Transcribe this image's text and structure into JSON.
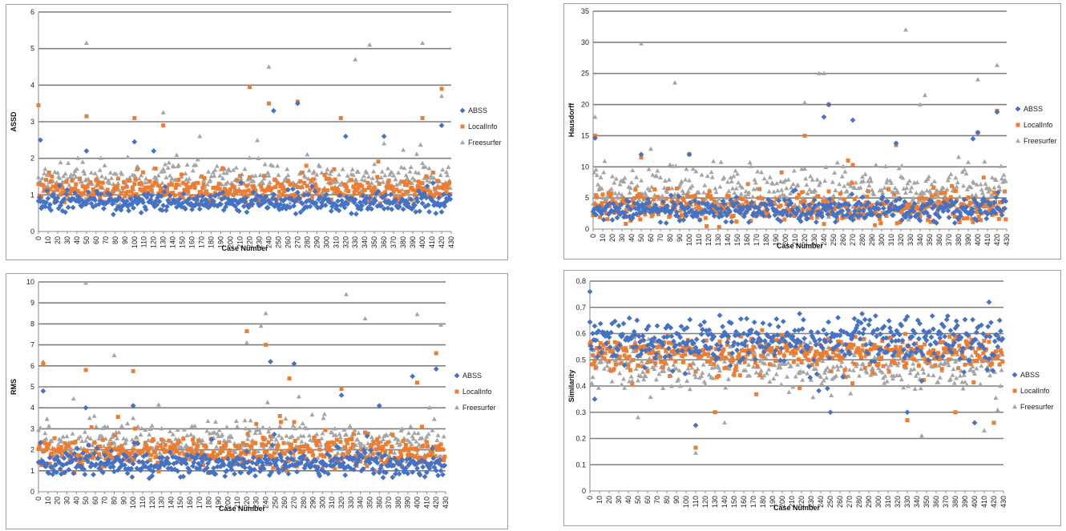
{
  "series_style": [
    {
      "name": "ABSS",
      "color": "#4472C4",
      "marker": "diamond"
    },
    {
      "name": "LocalInfo",
      "color": "#ED7D31",
      "marker": "square"
    },
    {
      "name": "Freesurfer",
      "color": "#A5A5A5",
      "marker": "triangle"
    }
  ],
  "chart_data": [
    {
      "type": "scatter",
      "xlabel": "Case Number",
      "ylabel": "ASSD",
      "xlim": [
        0,
        430
      ],
      "ylim": [
        0,
        6
      ],
      "yticks": [
        0,
        1,
        2,
        3,
        4,
        5,
        6
      ],
      "xticks": [
        0,
        10,
        20,
        30,
        40,
        50,
        60,
        70,
        80,
        90,
        100,
        110,
        120,
        130,
        140,
        150,
        160,
        170,
        180,
        190,
        200,
        210,
        220,
        230,
        240,
        250,
        260,
        270,
        280,
        290,
        300,
        310,
        320,
        330,
        340,
        350,
        360,
        370,
        380,
        390,
        400,
        410,
        420,
        430
      ],
      "grid": "horizontal",
      "legend": "right",
      "series": [
        {
          "name": "ABSS",
          "base": 0.8,
          "spread": 0.4,
          "peaks": [
            [
              2,
              2.5
            ],
            [
              50,
              2.2
            ],
            [
              100,
              2.45
            ],
            [
              120,
              2.2
            ],
            [
              245,
              3.3
            ],
            [
              270,
              3.5
            ],
            [
              320,
              2.6
            ],
            [
              360,
              2.6
            ],
            [
              420,
              2.9
            ]
          ]
        },
        {
          "name": "LocalInfo",
          "base": 1.1,
          "spread": 0.5,
          "peaks": [
            [
              0,
              3.45
            ],
            [
              50,
              3.15
            ],
            [
              100,
              3.1
            ],
            [
              130,
              2.9
            ],
            [
              220,
              3.95
            ],
            [
              240,
              3.5
            ],
            [
              270,
              3.55
            ],
            [
              315,
              3.1
            ],
            [
              400,
              3.1
            ],
            [
              420,
              3.9
            ]
          ]
        },
        {
          "name": "Freesurfer",
          "base": 1.4,
          "spread": 0.7,
          "peaks": [
            [
              50,
              5.15
            ],
            [
              130,
              3.25
            ],
            [
              240,
              4.5
            ],
            [
              330,
              4.7
            ],
            [
              345,
              5.1
            ],
            [
              400,
              5.15
            ],
            [
              420,
              3.7
            ]
          ]
        }
      ]
    },
    {
      "type": "scatter",
      "xlabel": "Case Number",
      "ylabel": "Hausdorff",
      "xlim": [
        0,
        430
      ],
      "ylim": [
        0,
        35
      ],
      "yticks": [
        0,
        5,
        10,
        15,
        20,
        25,
        30,
        35
      ],
      "xticks": [
        0,
        10,
        20,
        30,
        40,
        50,
        60,
        70,
        80,
        90,
        100,
        110,
        120,
        130,
        140,
        150,
        160,
        170,
        180,
        190,
        200,
        210,
        220,
        230,
        240,
        250,
        260,
        270,
        280,
        290,
        300,
        310,
        320,
        330,
        340,
        350,
        360,
        370,
        380,
        390,
        400,
        410,
        420,
        430
      ],
      "grid": "horizontal",
      "legend": "right",
      "series": [
        {
          "name": "ABSS",
          "base": 3.0,
          "spread": 2.5,
          "peaks": [
            [
              2,
              14.6
            ],
            [
              50,
              12
            ],
            [
              100,
              12
            ],
            [
              240,
              18
            ],
            [
              245,
              20
            ],
            [
              270,
              17.5
            ],
            [
              315,
              13.8
            ],
            [
              395,
              14.5
            ],
            [
              400,
              15.5
            ],
            [
              420,
              18.8
            ]
          ]
        },
        {
          "name": "LocalInfo",
          "base": 3.5,
          "spread": 3.5,
          "peaks": [
            [
              2,
              15
            ],
            [
              50,
              11.5
            ],
            [
              100,
              12
            ],
            [
              220,
              15
            ],
            [
              245,
              20
            ],
            [
              265,
              11
            ],
            [
              315,
              13.5
            ],
            [
              400,
              15.5
            ],
            [
              420,
              19
            ]
          ]
        },
        {
          "name": "Freesurfer",
          "base": 6.0,
          "spread": 5.0,
          "peaks": [
            [
              2,
              18
            ],
            [
              50,
              29.8
            ],
            [
              85,
              23.5
            ],
            [
              220,
              20.3
            ],
            [
              235,
              25
            ],
            [
              240,
              25
            ],
            [
              325,
              32
            ],
            [
              340,
              20
            ],
            [
              345,
              21.5
            ],
            [
              400,
              24
            ],
            [
              420,
              26.3
            ]
          ]
        }
      ]
    },
    {
      "type": "scatter",
      "xlabel": "Case Number",
      "ylabel": "RMS",
      "xlim": [
        0,
        430
      ],
      "ylim": [
        0,
        10
      ],
      "yticks": [
        0,
        1,
        2,
        3,
        4,
        5,
        6,
        7,
        8,
        9,
        10
      ],
      "xticks": [
        0,
        10,
        20,
        30,
        40,
        50,
        60,
        70,
        80,
        90,
        100,
        110,
        120,
        130,
        140,
        150,
        160,
        170,
        180,
        190,
        200,
        210,
        220,
        230,
        240,
        250,
        260,
        270,
        280,
        290,
        300,
        310,
        320,
        330,
        340,
        350,
        360,
        370,
        380,
        390,
        400,
        410,
        420,
        430
      ],
      "grid": "horizontal",
      "legend": "right",
      "series": [
        {
          "name": "ABSS",
          "base": 1.3,
          "spread": 0.8,
          "peaks": [
            [
              5,
              4.8
            ],
            [
              50,
              4.0
            ],
            [
              100,
              4.1
            ],
            [
              245,
              6.2
            ],
            [
              270,
              6.1
            ],
            [
              320,
              4.6
            ],
            [
              360,
              4.1
            ],
            [
              395,
              5.5
            ],
            [
              420,
              5.85
            ]
          ]
        },
        {
          "name": "LocalInfo",
          "base": 1.8,
          "spread": 1.0,
          "peaks": [
            [
              5,
              6.1
            ],
            [
              50,
              5.8
            ],
            [
              100,
              5.75
            ],
            [
              220,
              7.65
            ],
            [
              240,
              7.0
            ],
            [
              265,
              5.4
            ],
            [
              320,
              4.9
            ],
            [
              400,
              5.2
            ],
            [
              420,
              6.6
            ]
          ]
        },
        {
          "name": "Freesurfer",
          "base": 2.3,
          "spread": 1.4,
          "peaks": [
            [
              5,
              6.2
            ],
            [
              50,
              9.95
            ],
            [
              80,
              6.5
            ],
            [
              220,
              7.1
            ],
            [
              235,
              7.9
            ],
            [
              240,
              8.5
            ],
            [
              325,
              9.4
            ],
            [
              345,
              8.25
            ],
            [
              400,
              8.45
            ],
            [
              425,
              7.95
            ]
          ]
        }
      ]
    },
    {
      "type": "scatter",
      "xlabel": "Case Number",
      "ylabel": "Similarity",
      "xlim": [
        0,
        430
      ],
      "ylim": [
        0,
        0.8
      ],
      "yticks": [
        0,
        0.1,
        0.2,
        0.3,
        0.4,
        0.5,
        0.6,
        0.7,
        0.8
      ],
      "xticks": [
        0,
        10,
        20,
        30,
        40,
        50,
        60,
        70,
        80,
        90,
        100,
        110,
        120,
        130,
        140,
        150,
        160,
        170,
        180,
        190,
        200,
        210,
        220,
        230,
        240,
        250,
        260,
        270,
        280,
        290,
        300,
        310,
        320,
        330,
        340,
        350,
        360,
        370,
        380,
        390,
        400,
        410,
        420,
        430
      ],
      "grid": "horizontal",
      "legend": "right",
      "series": [
        {
          "name": "ABSS",
          "base": 0.58,
          "spread": 0.12,
          "peaks": [
            [
              0,
              0.76
            ],
            [
              110,
              0.25
            ],
            [
              5,
              0.35
            ],
            [
              250,
              0.3
            ],
            [
              330,
              0.3
            ],
            [
              400,
              0.26
            ],
            [
              415,
              0.72
            ]
          ]
        },
        {
          "name": "LocalInfo",
          "base": 0.53,
          "spread": 0.09,
          "peaks": [
            [
              110,
              0.165
            ],
            [
              130,
              0.3
            ],
            [
              330,
              0.27
            ],
            [
              380,
              0.3
            ],
            [
              420,
              0.26
            ]
          ]
        },
        {
          "name": "Freesurfer",
          "base": 0.48,
          "spread": 0.12,
          "peaks": [
            [
              110,
              0.145
            ],
            [
              50,
              0.28
            ],
            [
              140,
              0.26
            ],
            [
              345,
              0.21
            ],
            [
              410,
              0.23
            ]
          ]
        }
      ]
    }
  ]
}
